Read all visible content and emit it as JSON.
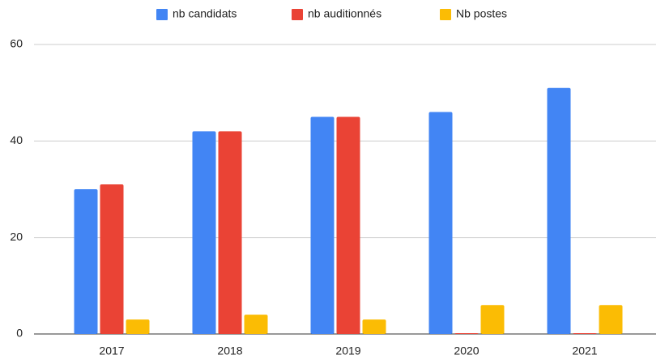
{
  "chart_data": {
    "type": "bar",
    "categories": [
      "2017",
      "2018",
      "2019",
      "2020",
      "2021"
    ],
    "series": [
      {
        "name": "nb candidats",
        "color": "#4285f4",
        "values": [
          30,
          42,
          45,
          46,
          51
        ]
      },
      {
        "name": "nb auditionnés",
        "color": "#ea4335",
        "values": [
          31,
          42,
          45,
          0,
          0
        ]
      },
      {
        "name": "Nb postes",
        "color": "#fbbc04",
        "values": [
          3,
          4,
          3,
          6,
          6
        ]
      }
    ],
    "ylim": [
      0,
      60
    ],
    "yticks": [
      0,
      20,
      40,
      60
    ],
    "grid": true,
    "legend": "top"
  }
}
